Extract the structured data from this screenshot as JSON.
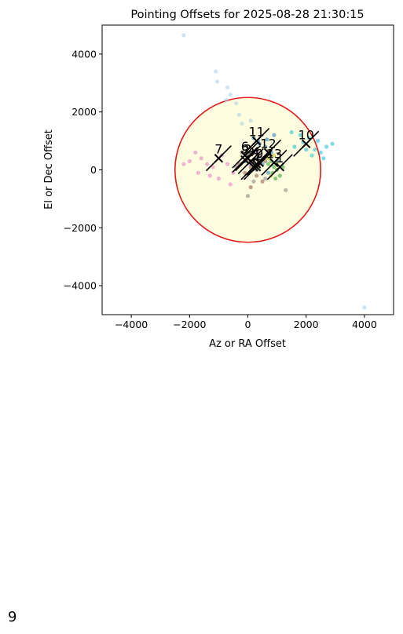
{
  "page_number": "9",
  "chart_data": {
    "type": "scatter",
    "title": "Pointing Offsets for 2025-08-28 21:30:15",
    "xlabel": "Az or RA Offset",
    "ylabel": "El or Dec Offset",
    "xlim": [
      -5000,
      5000
    ],
    "ylim": [
      -5000,
      5000
    ],
    "xticks": [
      -4000,
      -2000,
      0,
      2000,
      4000
    ],
    "yticks": [
      -4000,
      -2000,
      0,
      2000,
      4000
    ],
    "grid": false,
    "circle": {
      "center": [
        0,
        0
      ],
      "radius": 2500,
      "edge_color": "#e41a1c",
      "fill_color": "#fffde0"
    },
    "series": [
      {
        "color": "#a6cee3",
        "points": [
          [
            -2200,
            4650
          ],
          [
            -1100,
            3400
          ],
          [
            -1050,
            3050
          ],
          [
            -700,
            2850
          ],
          [
            -600,
            2600
          ],
          [
            -400,
            2300
          ],
          [
            -300,
            1900
          ],
          [
            -200,
            1600
          ],
          [
            -750,
            2400
          ],
          [
            100,
            1700
          ],
          [
            4000,
            -4750
          ]
        ]
      },
      {
        "color": "#1f78b4",
        "points": [
          [
            200,
            1100
          ],
          [
            400,
            900
          ],
          [
            600,
            800
          ],
          [
            800,
            600
          ],
          [
            300,
            400
          ],
          [
            500,
            200
          ],
          [
            700,
            -100
          ],
          [
            -100,
            300
          ],
          [
            900,
            1200
          ],
          [
            1000,
            300
          ],
          [
            350,
            1000
          ],
          [
            650,
            1050
          ]
        ]
      },
      {
        "color": "#17becf",
        "points": [
          [
            1800,
            1200
          ],
          [
            2100,
            1100
          ],
          [
            2300,
            700
          ],
          [
            2500,
            600
          ],
          [
            2700,
            800
          ],
          [
            2900,
            900
          ],
          [
            2200,
            500
          ],
          [
            1600,
            800
          ],
          [
            1500,
            1300
          ],
          [
            2400,
            1000
          ],
          [
            2600,
            400
          ],
          [
            1900,
            950
          ],
          [
            2000,
            700
          ]
        ]
      },
      {
        "color": "#e377c2",
        "points": [
          [
            -1600,
            400
          ],
          [
            -1400,
            200
          ],
          [
            -1200,
            100
          ],
          [
            -1800,
            600
          ],
          [
            -900,
            500
          ],
          [
            -700,
            200
          ],
          [
            -500,
            -100
          ],
          [
            -1300,
            -200
          ],
          [
            -1000,
            -300
          ],
          [
            -600,
            -500
          ],
          [
            -1700,
            -100
          ],
          [
            -2000,
            300
          ],
          [
            -2200,
            200
          ]
        ]
      },
      {
        "color": "#8c564b",
        "points": [
          [
            -200,
            600
          ],
          [
            0,
            500
          ],
          [
            200,
            300
          ],
          [
            100,
            100
          ],
          [
            -100,
            -100
          ],
          [
            300,
            -200
          ],
          [
            400,
            500
          ],
          [
            600,
            300
          ],
          [
            -300,
            200
          ],
          [
            500,
            -400
          ],
          [
            100,
            -600
          ],
          [
            200,
            200
          ],
          [
            0,
            300
          ]
        ]
      },
      {
        "color": "#2ca02c",
        "points": [
          [
            800,
            300
          ],
          [
            900,
            100
          ],
          [
            1000,
            0
          ],
          [
            1100,
            -200
          ],
          [
            700,
            200
          ],
          [
            950,
            -300
          ],
          [
            1200,
            100
          ],
          [
            850,
            -100
          ]
        ]
      },
      {
        "color": "#bcbd22",
        "points": [
          [
            700,
            400
          ],
          [
            900,
            500
          ],
          [
            1000,
            200
          ],
          [
            800,
            -200
          ]
        ]
      },
      {
        "color": "#7f7f7f",
        "points": [
          [
            0,
            -900
          ],
          [
            600,
            -300
          ],
          [
            300,
            0
          ],
          [
            -400,
            100
          ],
          [
            1300,
            -700
          ],
          [
            400,
            200
          ],
          [
            200,
            -400
          ]
        ]
      },
      {
        "color": "#9467bd",
        "points": [
          [
            300,
            600
          ],
          [
            500,
            400
          ],
          [
            100,
            200
          ]
        ]
      }
    ],
    "markers": [
      {
        "label": "",
        "x": 200,
        "y": 100
      },
      {
        "label": "1",
        "x": 1100,
        "y": 100
      },
      {
        "label": "2",
        "x": 0,
        "y": 400
      },
      {
        "label": "3",
        "x": 100,
        "y": 300
      },
      {
        "label": "4",
        "x": 300,
        "y": 100
      },
      {
        "label": "5",
        "x": 300,
        "y": 200
      },
      {
        "label": "6",
        "x": -100,
        "y": 500
      },
      {
        "label": "7",
        "x": -1000,
        "y": 400
      },
      {
        "label": "8",
        "x": -100,
        "y": 350
      },
      {
        "label": "9",
        "x": 400,
        "y": 250
      },
      {
        "label": "10",
        "x": 2000,
        "y": 900
      },
      {
        "label": "11",
        "x": 300,
        "y": 1000
      },
      {
        "label": "12",
        "x": 700,
        "y": 600
      },
      {
        "label": "13",
        "x": 900,
        "y": 250
      }
    ]
  }
}
